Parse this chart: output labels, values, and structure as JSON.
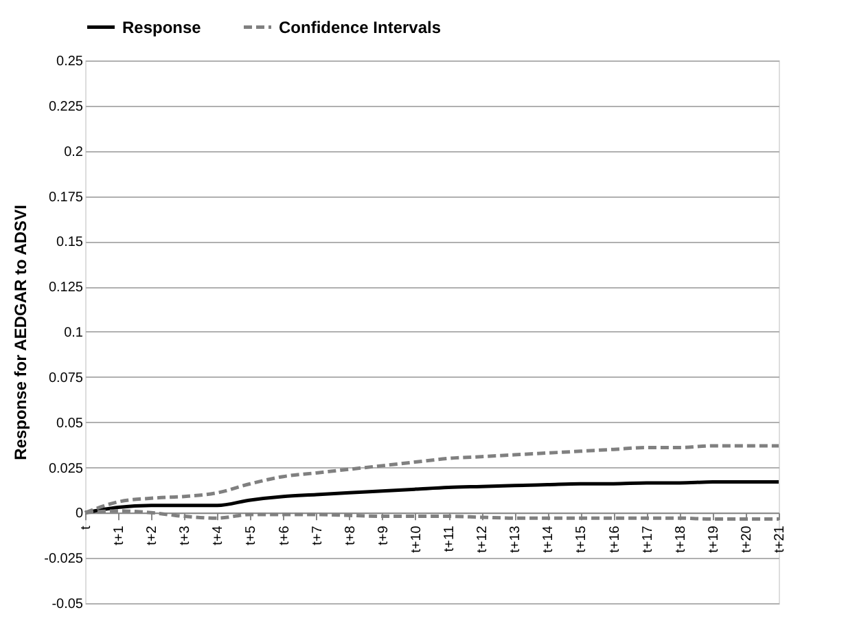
{
  "chart_data": {
    "type": "line",
    "ylabel": "Response for AEDGAR to ADSVI",
    "categories": [
      "t",
      "t+1",
      "t+2",
      "t+3",
      "t+4",
      "t+5",
      "t+6",
      "t+7",
      "t+8",
      "t+9",
      "t+10",
      "t+11",
      "t+12",
      "t+13",
      "t+14",
      "t+15",
      "t+16",
      "t+17",
      "t+18",
      "t+19",
      "t+20",
      "t+21"
    ],
    "series": [
      {
        "name": "Response",
        "color": "#000000",
        "line_style": "solid",
        "values": [
          0,
          0.003,
          0.004,
          0.004,
          0.004,
          0.007,
          0.009,
          0.01,
          0.011,
          0.012,
          0.013,
          0.014,
          0.0145,
          0.015,
          0.0155,
          0.016,
          0.016,
          0.0165,
          0.0165,
          0.017,
          0.017,
          0.017
        ]
      },
      {
        "name": "Confidence Intervals",
        "color": "#808080",
        "line_style": "dashed",
        "values": [
          0,
          0.006,
          0.008,
          0.009,
          0.011,
          0.016,
          0.02,
          0.022,
          0.024,
          0.026,
          0.028,
          0.03,
          0.031,
          0.032,
          0.033,
          0.034,
          0.035,
          0.036,
          0.036,
          0.037,
          0.037,
          0.037
        ]
      },
      {
        "color": "#808080",
        "line_style": "dashed",
        "values": [
          0,
          0.001,
          0.0,
          -0.002,
          -0.003,
          -0.001,
          -0.001,
          -0.001,
          -0.0015,
          -0.002,
          -0.002,
          -0.002,
          -0.0025,
          -0.003,
          -0.003,
          -0.003,
          -0.003,
          -0.003,
          -0.003,
          -0.0035,
          -0.0035,
          -0.0035
        ]
      }
    ],
    "ylim": [
      -0.05,
      0.25
    ],
    "yticks": [
      -0.05,
      -0.025,
      0,
      0.025,
      0.05,
      0.075,
      0.1,
      0.125,
      0.15,
      0.175,
      0.2,
      0.225,
      0.25
    ],
    "grid": "y",
    "legend": "top",
    "marker": "none"
  }
}
